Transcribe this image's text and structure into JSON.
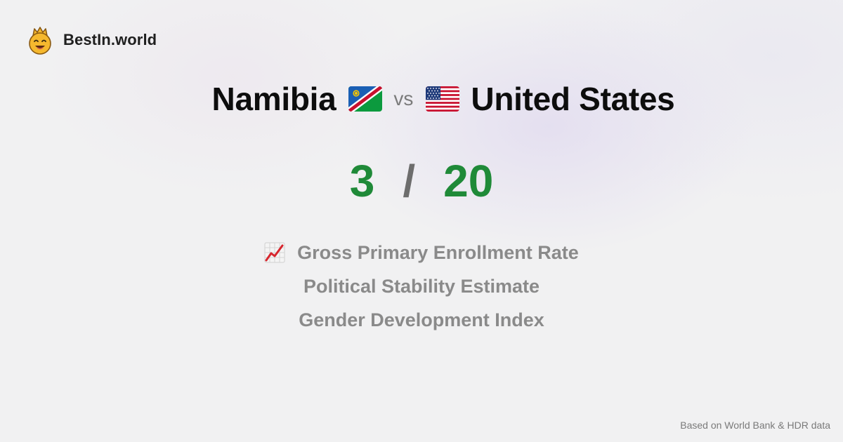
{
  "brand": {
    "name": "BestIn.world",
    "logo_icon": "crowned-smiley-icon"
  },
  "comparison": {
    "country_a": "Namibia",
    "country_b": "United States",
    "vs_label": "vs",
    "flag_a_icon": "namibia-flag-icon",
    "flag_b_icon": "united-states-flag-icon"
  },
  "score": {
    "a": "3",
    "separator": "/",
    "b": "20",
    "color": "#1f8a38"
  },
  "metrics": [
    {
      "label": "Gross Primary Enrollment Rate",
      "icon": "chart-increasing-icon"
    },
    {
      "label": "Political Stability Estimate"
    },
    {
      "label": "Gender Development Index"
    }
  ],
  "footer": {
    "source": "Based on World Bank & HDR data"
  }
}
